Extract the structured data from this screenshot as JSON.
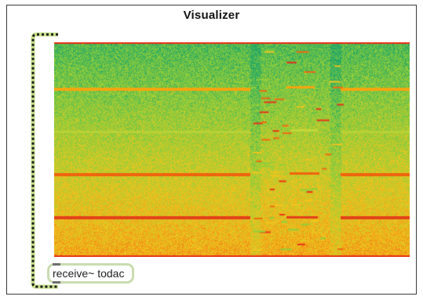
{
  "window": {
    "title": "Visualizer"
  },
  "spectrogram": {
    "palette": {
      "low": "#18a36a",
      "mid": "#8fcf3a",
      "high": "#f5c41c",
      "peak": "#f06a10",
      "hot": "#e8321a"
    }
  },
  "patch": {
    "object_label": "receive~ todac",
    "cord_color": "#c8e08a",
    "cord_dash_color": "#1d1d1d"
  }
}
